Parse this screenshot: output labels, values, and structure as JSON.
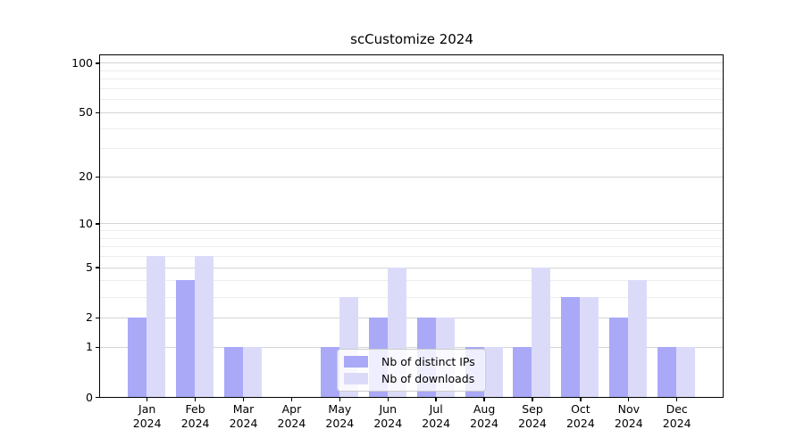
{
  "title": "scCustomize 2024",
  "legend": {
    "items": [
      {
        "label": "Nb of distinct IPs"
      },
      {
        "label": "Nb of downloads"
      }
    ]
  },
  "chart_data": {
    "type": "bar",
    "title": "scCustomize 2024",
    "categories": [
      "Jan",
      "Feb",
      "Mar",
      "Apr",
      "May",
      "Jun",
      "Jul",
      "Aug",
      "Sep",
      "Oct",
      "Nov",
      "Dec"
    ],
    "category_year": "2024",
    "series": [
      {
        "name": "Nb of distinct IPs",
        "color": "#a9a9f8",
        "values": [
          2,
          4,
          1,
          0,
          1,
          2,
          2,
          1,
          1,
          3,
          2,
          1
        ]
      },
      {
        "name": "Nb of downloads",
        "color": "#dbdbf9",
        "values": [
          6,
          6,
          1,
          0,
          3,
          5,
          2,
          1,
          5,
          3,
          4,
          1
        ]
      }
    ],
    "yscale": "log1p",
    "ylim": [
      0,
      110
    ],
    "yticks": [
      0,
      1,
      2,
      5,
      10,
      20,
      50,
      100
    ],
    "minor_yticks": [
      3,
      4,
      6,
      7,
      8,
      9,
      30,
      40,
      60,
      70,
      80,
      90
    ],
    "grid": true,
    "legend_position": "lower center inside",
    "bar_color_major_hex": "#a9a9f8",
    "bar_color_minor_hex": "#dbdbf9"
  }
}
